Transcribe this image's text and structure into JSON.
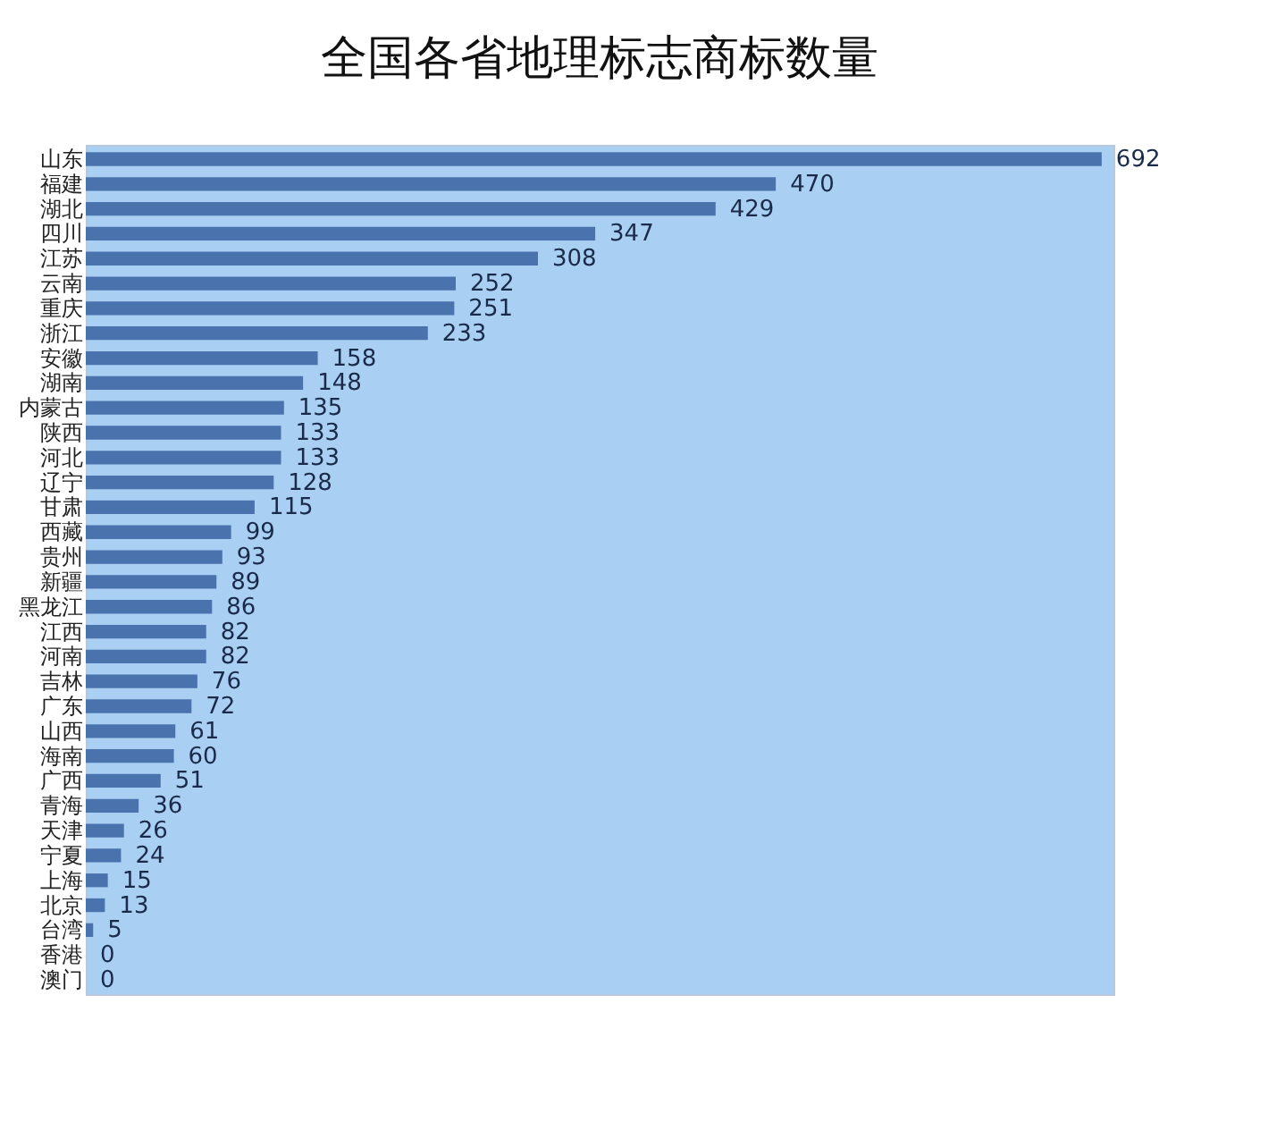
{
  "chart_data": {
    "type": "bar",
    "orientation": "horizontal",
    "title": "全国各省地理标志商标数量",
    "categories": [
      "山东",
      "福建",
      "湖北",
      "四川",
      "江苏",
      "云南",
      "重庆",
      "浙江",
      "安徽",
      "湖南",
      "内蒙古",
      "陕西",
      "河北",
      "辽宁",
      "甘肃",
      "西藏",
      "贵州",
      "新疆",
      "黑龙江",
      "江西",
      "河南",
      "吉林",
      "广东",
      "山西",
      "海南",
      "广西",
      "青海",
      "天津",
      "宁夏",
      "上海",
      "北京",
      "台湾",
      "香港",
      "澳门"
    ],
    "values": [
      692,
      470,
      429,
      347,
      308,
      252,
      251,
      233,
      158,
      148,
      135,
      133,
      133,
      128,
      115,
      99,
      93,
      89,
      86,
      82,
      82,
      76,
      72,
      61,
      60,
      51,
      36,
      26,
      24,
      15,
      13,
      5,
      0,
      0
    ],
    "color": "#4a72ad",
    "data_labels": true,
    "grid": false
  }
}
